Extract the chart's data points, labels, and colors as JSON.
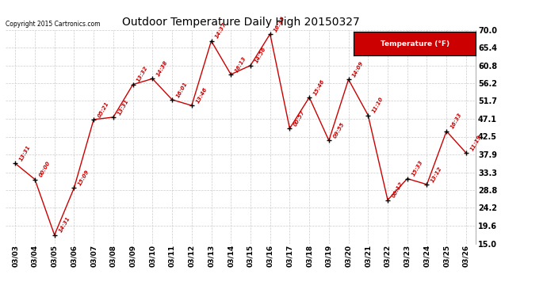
{
  "title": "Outdoor Temperature Daily High 20150327",
  "copyright": "Copyright 2015 Cartronics.com",
  "legend_label": "Temperature (°F)",
  "dates": [
    "03/03",
    "03/04",
    "03/05",
    "03/06",
    "03/07",
    "03/08",
    "03/09",
    "03/10",
    "03/11",
    "03/12",
    "03/13",
    "03/14",
    "03/15",
    "03/16",
    "03/17",
    "03/18",
    "03/19",
    "03/20",
    "03/21",
    "03/22",
    "03/23",
    "03/24",
    "03/25",
    "03/26"
  ],
  "values": [
    35.6,
    31.5,
    17.2,
    29.3,
    46.9,
    47.5,
    55.9,
    57.4,
    52.0,
    50.5,
    67.1,
    58.5,
    60.8,
    68.9,
    44.6,
    52.6,
    41.5,
    57.2,
    48.0,
    26.2,
    31.7,
    30.2,
    43.9,
    38.3
  ],
  "annotations": [
    "13:31",
    "00:00",
    "14:31",
    "15:09",
    "05:21",
    "13:31",
    "13:32",
    "14:38",
    "16:01",
    "13:46",
    "14:37",
    "16:13",
    "14:56",
    "16:35",
    "00:57",
    "15:46",
    "09:55",
    "14:09",
    "11:10",
    "00:12",
    "15:33",
    "13:12",
    "16:33",
    "11:19"
  ],
  "line_color": "#cc0000",
  "marker_color": "black",
  "annotation_color": "#cc0000",
  "background_color": "#ffffff",
  "grid_color": "#cccccc",
  "legend_bg": "#cc0000",
  "legend_text": "#ffffff",
  "ylim": [
    15.0,
    70.0
  ],
  "yticks": [
    15.0,
    19.6,
    24.2,
    28.8,
    33.3,
    37.9,
    42.5,
    47.1,
    51.7,
    56.2,
    60.8,
    65.4,
    70.0
  ]
}
